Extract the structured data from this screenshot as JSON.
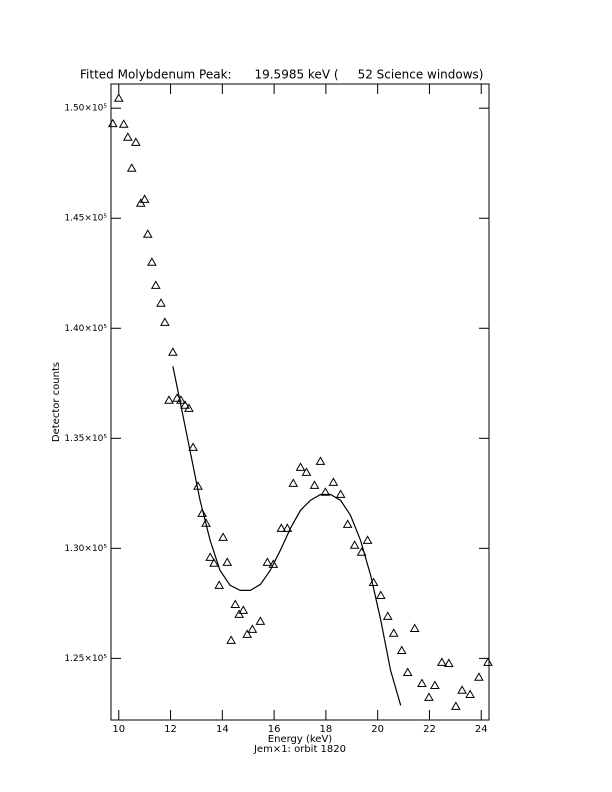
{
  "chart_data": {
    "type": "scatter",
    "title": "Fitted Molybdenum Peak:      19.5985 keV (     52 Science windows)",
    "x_label": "Energy (keV)",
    "subtitle": "Jem×1: orbit 1820",
    "y_label": "Detector counts",
    "xlim": [
      9.7,
      24.3
    ],
    "xticks": [
      10,
      12,
      14,
      16,
      18,
      20,
      22,
      24
    ],
    "ylim": [
      122200,
      151100
    ],
    "yticks": [
      {
        "value": 125000,
        "label": "1.25×10⁵"
      },
      {
        "value": 130000,
        "label": "1.30×10⁵"
      },
      {
        "value": 135000,
        "label": "1.35×10⁵"
      },
      {
        "value": 140000,
        "label": "1.40×10⁵"
      },
      {
        "value": 145000,
        "label": "1.45×10⁵"
      },
      {
        "value": 150000,
        "label": "1.50×10⁵"
      }
    ],
    "series": [
      {
        "style": "markers",
        "marker": "triangle",
        "color": "#000000",
        "x": [
          9.77,
          10.0,
          10.19,
          10.35,
          10.5,
          10.66,
          10.85,
          11.0,
          11.12,
          11.28,
          11.43,
          11.63,
          11.78,
          11.94,
          12.09,
          12.25,
          12.4,
          12.56,
          12.71,
          12.87,
          13.06,
          13.22,
          13.37,
          13.53,
          13.68,
          13.88,
          14.03,
          14.19,
          14.34,
          14.5,
          14.65,
          14.81,
          14.96,
          15.16,
          15.47,
          15.74,
          15.97,
          16.28,
          16.51,
          16.74,
          17.02,
          17.25,
          17.56,
          17.79,
          17.98,
          18.29,
          18.57,
          18.84,
          19.11,
          19.38,
          19.61,
          19.84,
          20.12,
          20.39,
          20.62,
          20.93,
          21.16,
          21.43,
          21.71,
          21.98,
          22.21,
          22.48,
          22.75,
          23.02,
          23.26,
          23.57,
          23.91,
          24.26
        ],
        "values": [
          149300,
          150450,
          149270,
          148680,
          147270,
          148450,
          145680,
          145860,
          144270,
          143000,
          141950,
          141140,
          140270,
          136730,
          138910,
          136820,
          136730,
          136500,
          136360,
          134590,
          132820,
          131590,
          131140,
          129590,
          129320,
          128320,
          130500,
          129360,
          125820,
          127450,
          127000,
          127180,
          126090,
          126320,
          126680,
          129360,
          129270,
          130910,
          130910,
          132950,
          133680,
          133450,
          132860,
          133950,
          132550,
          133000,
          132450,
          131090,
          130140,
          129820,
          130360,
          128450,
          127860,
          126910,
          126140,
          125360,
          124360,
          126360,
          123860,
          123230,
          123770,
          124820,
          124770,
          122820,
          123550,
          123360,
          124140,
          124820
        ]
      },
      {
        "style": "line",
        "color": "#000000",
        "x": [
          12.09,
          12.36,
          12.75,
          13.14,
          13.53,
          13.91,
          14.3,
          14.69,
          15.08,
          15.47,
          15.85,
          16.24,
          16.63,
          17.02,
          17.4,
          17.79,
          18.18,
          18.57,
          18.95,
          19.34,
          19.73,
          20.12,
          20.5,
          20.89
        ],
        "values": [
          138270,
          136730,
          134450,
          132180,
          130360,
          129000,
          128320,
          128090,
          128090,
          128360,
          129000,
          129910,
          130910,
          131730,
          132180,
          132450,
          132450,
          132180,
          131500,
          130360,
          128770,
          126730,
          124450,
          122860
        ]
      }
    ]
  }
}
